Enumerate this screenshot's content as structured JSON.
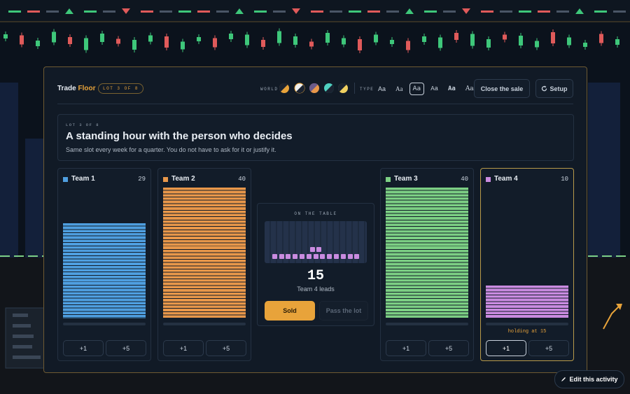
{
  "header": {
    "title_a": "Trade",
    "title_b": "Floor",
    "lot_pill": "LOT 3 OF 8",
    "world_label": "WORLD",
    "type_label": "TYPE",
    "type_options": [
      "Aa",
      "Aa",
      "Aa",
      "Aa",
      "Aa",
      "Aa"
    ],
    "type_selected": 2,
    "buttons": [
      "Close the sale",
      "Setup"
    ]
  },
  "lot": {
    "kicker": "LOT 3 OF 8",
    "title": "A standing hour with the person who decides",
    "description": "Same slot every week for a quarter. You do not have to ask for it or justify it."
  },
  "teams": [
    {
      "name": "Team 1",
      "score": 29,
      "color": "#4f9fe0",
      "buttons": [
        "+1",
        "+5"
      ]
    },
    {
      "name": "Team 2",
      "score": 40,
      "color": "#e8974a",
      "buttons": [
        "+1",
        "+5"
      ]
    },
    {
      "name": "Team 3",
      "score": 40,
      "color": "#7ccf84",
      "buttons": [
        "+1",
        "+5"
      ]
    },
    {
      "name": "Team 4",
      "score": 10,
      "color": "#c98be0",
      "buttons": [
        "+1",
        "+5"
      ],
      "status": "holding at 15"
    }
  ],
  "table": {
    "kicker": "ON THE TABLE",
    "value": 15,
    "caption": "Team 4 leads",
    "sold": "Sold",
    "pass": "Pass the lot"
  },
  "edit_button": "Edit this activity"
}
